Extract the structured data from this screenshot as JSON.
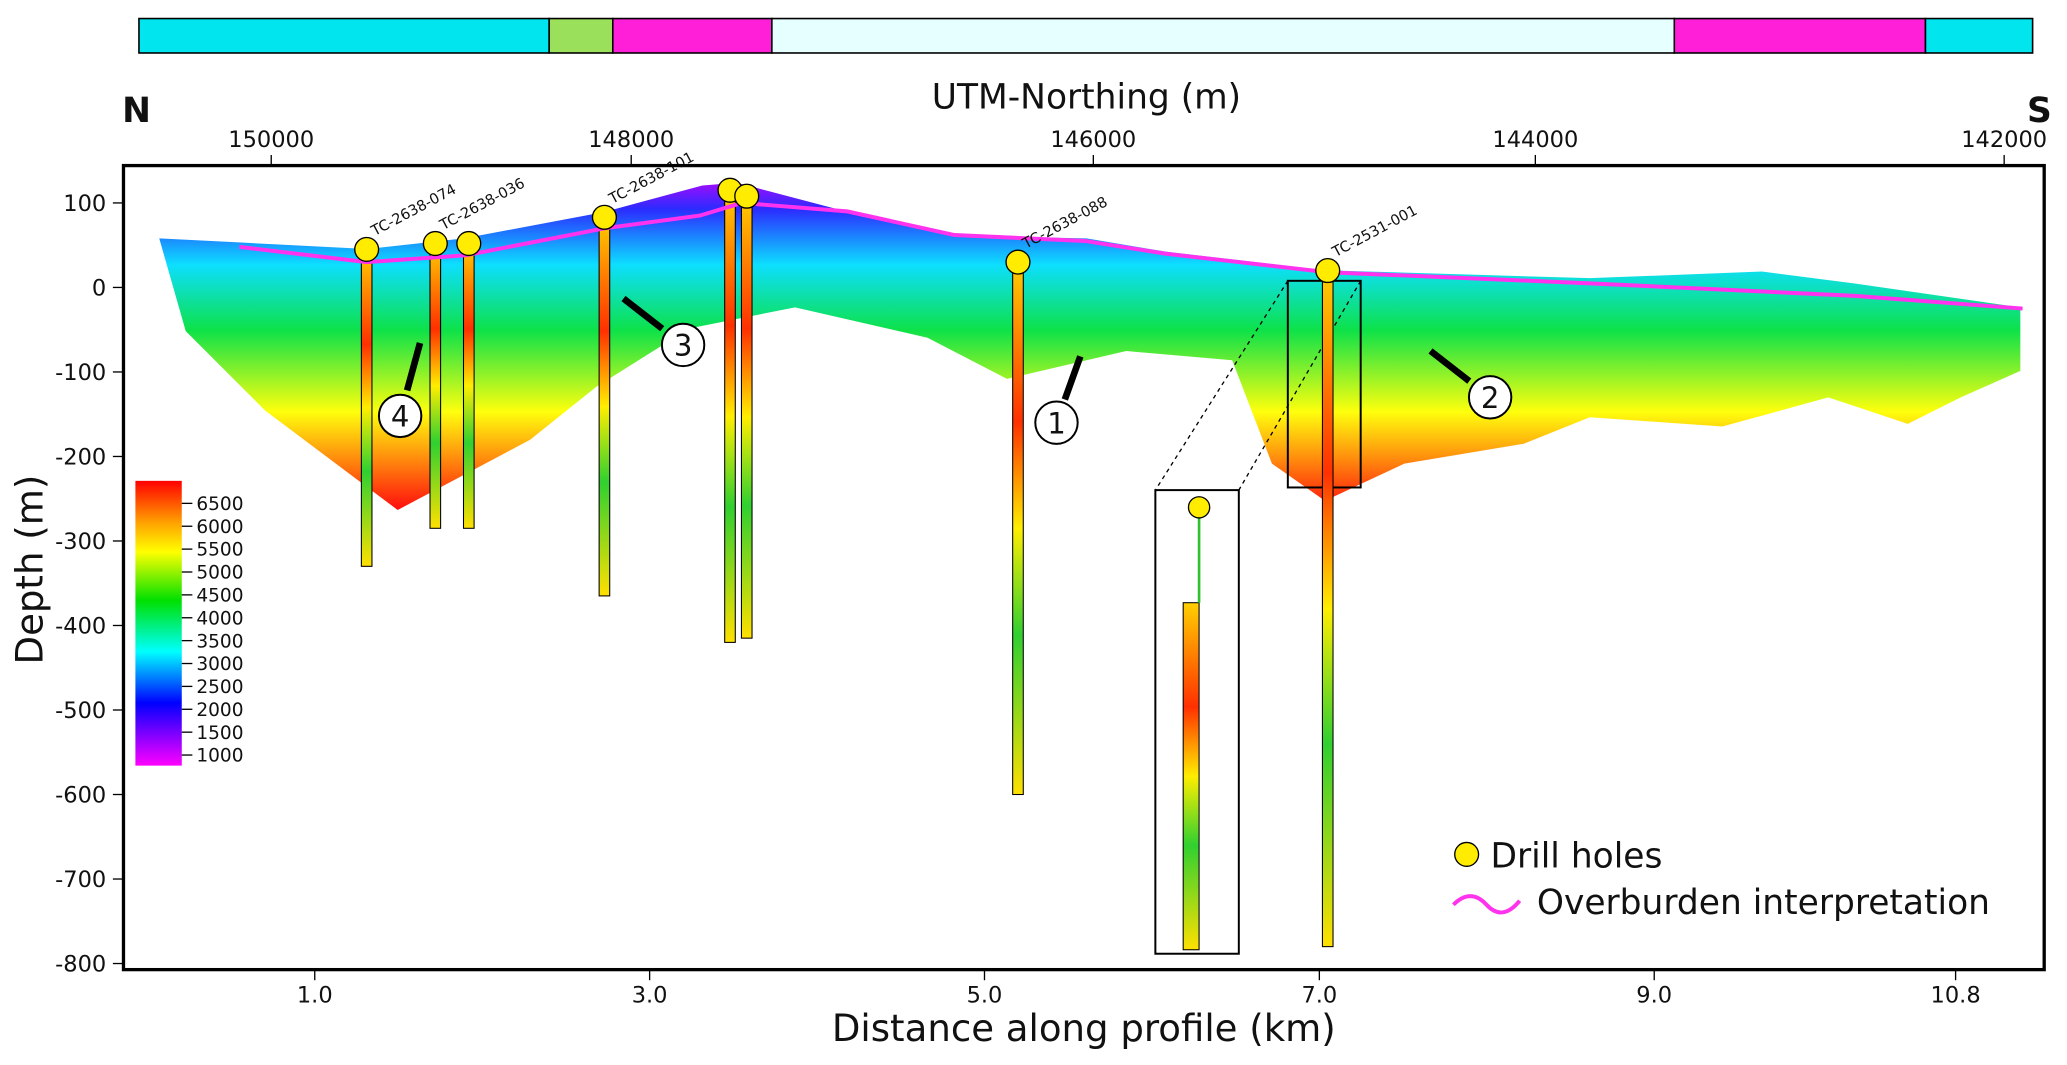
{
  "chart_data": {
    "type": "heatmap",
    "xlabel": "Distance along profile (km)",
    "ylabel": "Depth (m)",
    "top_axis_label": "UTM-Northing (m)",
    "left_corner_label": "N",
    "right_corner_label": "S",
    "x_ticks": [
      {
        "label": "1.0",
        "km": 1.0
      },
      {
        "label": "3.0",
        "km": 3.0
      },
      {
        "label": "5.0",
        "km": 5.0
      },
      {
        "label": "7.0",
        "km": 7.0
      },
      {
        "label": "9.0",
        "km": 9.0
      },
      {
        "label": "10.8",
        "km": 10.8
      }
    ],
    "y_ticks": [
      100,
      0,
      -100,
      -200,
      -300,
      -400,
      -500,
      -600,
      -700,
      -800
    ],
    "ylim": [
      -810,
      140
    ],
    "top_ticks": [
      {
        "label": "150000",
        "km": 0.74
      },
      {
        "label": "148000",
        "km": 2.89
      },
      {
        "label": "146000",
        "km": 5.65
      },
      {
        "label": "144000",
        "km": 8.29
      },
      {
        "label": "142000",
        "km": 11.09
      }
    ],
    "colorbar": {
      "ticks": [
        6500,
        6000,
        5500,
        5000,
        4500,
        4000,
        3500,
        3000,
        2500,
        2000,
        1500,
        1000
      ],
      "colors": [
        "#ff0000",
        "#ffa500",
        "#ffff00",
        "#00e000",
        "#00ffff",
        "#0000ff",
        "#ff00ff"
      ]
    },
    "top_strip": [
      {
        "color": "#00e5ee",
        "km_from": -0.05,
        "km_to": 2.4
      },
      {
        "color": "#9be05a",
        "km_from": 2.4,
        "km_to": 2.78
      },
      {
        "color": "#ff1fd8",
        "km_from": 2.78,
        "km_to": 3.73
      },
      {
        "color": "#e6ffff",
        "km_from": 3.73,
        "km_to": 9.12
      },
      {
        "color": "#ff1fd8",
        "km_from": 9.12,
        "km_to": 10.62
      },
      {
        "color": "#00e5ee",
        "km_from": 10.62,
        "km_to": 11.26
      }
    ],
    "drill_holes": [
      {
        "name": "TC-2638-074",
        "km": 1.31,
        "top": 45,
        "bottom": -330
      },
      {
        "name": "TC-2638-036",
        "km": 1.72,
        "top": 52,
        "bottom": -285
      },
      {
        "name": "",
        "km": 1.92,
        "top": 52,
        "bottom": -285
      },
      {
        "name": "TC-2638-101",
        "km": 2.73,
        "top": 83,
        "bottom": -365
      },
      {
        "name": "",
        "km": 3.48,
        "top": 115,
        "bottom": -420
      },
      {
        "name": "",
        "km": 3.58,
        "top": 108,
        "bottom": -415
      },
      {
        "name": "TC-2638-088",
        "km": 5.2,
        "top": 30,
        "bottom": -600
      },
      {
        "name": "TC-2531-001",
        "km": 7.05,
        "top": 20,
        "bottom": -780
      }
    ],
    "overburden": [
      [
        0.55,
        48
      ],
      [
        1.31,
        30
      ],
      [
        1.9,
        38
      ],
      [
        2.73,
        70
      ],
      [
        3.3,
        85
      ],
      [
        3.55,
        100
      ],
      [
        4.18,
        90
      ],
      [
        4.82,
        62
      ],
      [
        5.6,
        55
      ],
      [
        6.08,
        40
      ],
      [
        7.05,
        18
      ],
      [
        8.6,
        5
      ],
      [
        10.2,
        -10
      ],
      [
        11.2,
        -25
      ]
    ],
    "annotations": [
      {
        "label": "1",
        "km": 5.43,
        "elev": -160
      },
      {
        "label": "2",
        "km": 8.02,
        "elev": -130
      },
      {
        "label": "3",
        "km": 3.2,
        "elev": -68
      },
      {
        "label": "4",
        "km": 1.51,
        "elev": -152
      }
    ],
    "legend": {
      "placement": "bottom-right",
      "items": [
        {
          "label": "Drill holes",
          "symbol": "circle",
          "color": "#ffec00"
        },
        {
          "label": "Overburden interpretation",
          "symbol": "line",
          "color": "#ff33ee"
        }
      ]
    }
  }
}
